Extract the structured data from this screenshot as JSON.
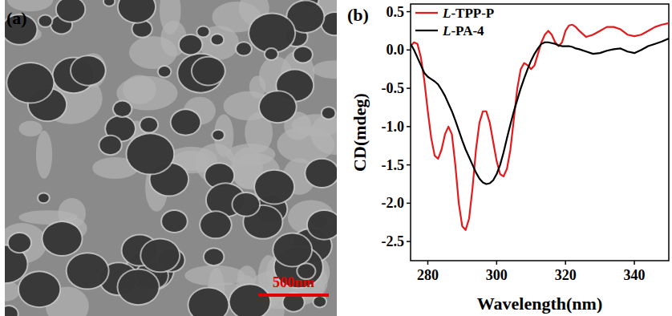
{
  "panel_a": {
    "label": "(a)",
    "scale_bar_label": "500nm"
  },
  "chart_data": {
    "type": "line",
    "title": "(b)",
    "x_label": "Wavelength(nm)",
    "y_label": "CD(mdeg)",
    "x": [
      275,
      276,
      277,
      278,
      279,
      280,
      281,
      282,
      283,
      284,
      285,
      286,
      287,
      288,
      289,
      290,
      291,
      292,
      293,
      294,
      295,
      296,
      297,
      298,
      299,
      300,
      301,
      302,
      303,
      304,
      305,
      306,
      307,
      308,
      309,
      310,
      311,
      312,
      313,
      314,
      315,
      316,
      317,
      318,
      319,
      320,
      321,
      322,
      323,
      324,
      326,
      328,
      330,
      332,
      334,
      336,
      338,
      340,
      342,
      344,
      346,
      348,
      350
    ],
    "series": [
      {
        "name": "L-TPP-P",
        "color": "#e41a1c",
        "values": [
          0.05,
          0.1,
          0.08,
          -0.1,
          -0.4,
          -0.8,
          -1.15,
          -1.38,
          -1.42,
          -1.3,
          -1.1,
          -1.0,
          -1.1,
          -1.5,
          -2.0,
          -2.3,
          -2.35,
          -2.2,
          -1.8,
          -1.3,
          -0.95,
          -0.8,
          -0.8,
          -0.95,
          -1.2,
          -1.45,
          -1.62,
          -1.65,
          -1.55,
          -1.3,
          -0.9,
          -0.5,
          -0.25,
          -0.17,
          -0.2,
          -0.25,
          -0.2,
          -0.05,
          0.1,
          0.2,
          0.25,
          0.2,
          0.1,
          0.05,
          0.1,
          0.25,
          0.32,
          0.33,
          0.3,
          0.25,
          0.17,
          0.2,
          0.25,
          0.3,
          0.3,
          0.27,
          0.2,
          0.18,
          0.2,
          0.25,
          0.3,
          0.33,
          0.35
        ]
      },
      {
        "name": "L-PA-4",
        "color": "#000000",
        "values": [
          0.08,
          0.0,
          -0.1,
          -0.2,
          -0.3,
          -0.35,
          -0.38,
          -0.41,
          -0.45,
          -0.52,
          -0.6,
          -0.7,
          -0.8,
          -0.92,
          -1.05,
          -1.18,
          -1.3,
          -1.4,
          -1.5,
          -1.6,
          -1.68,
          -1.73,
          -1.75,
          -1.74,
          -1.7,
          -1.62,
          -1.5,
          -1.34,
          -1.15,
          -0.97,
          -0.8,
          -0.65,
          -0.5,
          -0.37,
          -0.25,
          -0.14,
          -0.05,
          0.02,
          0.08,
          0.1,
          0.1,
          0.09,
          0.08,
          0.06,
          0.05,
          0.05,
          0.05,
          0.04,
          0.02,
          0.01,
          -0.02,
          -0.05,
          -0.04,
          -0.01,
          0.01,
          0.02,
          -0.02,
          -0.04,
          0.0,
          0.05,
          0.08,
          0.11,
          0.15
        ]
      }
    ],
    "xlim": [
      275,
      350
    ],
    "xticks": [
      280,
      300,
      320,
      340
    ],
    "ylim": [
      -2.75,
      0.6
    ],
    "yticks": [
      {
        "value": -2.5,
        "label": "-2.5"
      },
      {
        "value": -2,
        "label": "-2.0"
      },
      {
        "value": -1.5,
        "label": "-1.5"
      },
      {
        "value": -1,
        "label": "-1.0"
      },
      {
        "value": -0.5,
        "label": "-0.5"
      },
      {
        "value": 0,
        "label": "0.0"
      },
      {
        "value": 0.5,
        "label": "0.5"
      }
    ],
    "legend": "upper left",
    "grid": false,
    "line_style": "solid"
  }
}
